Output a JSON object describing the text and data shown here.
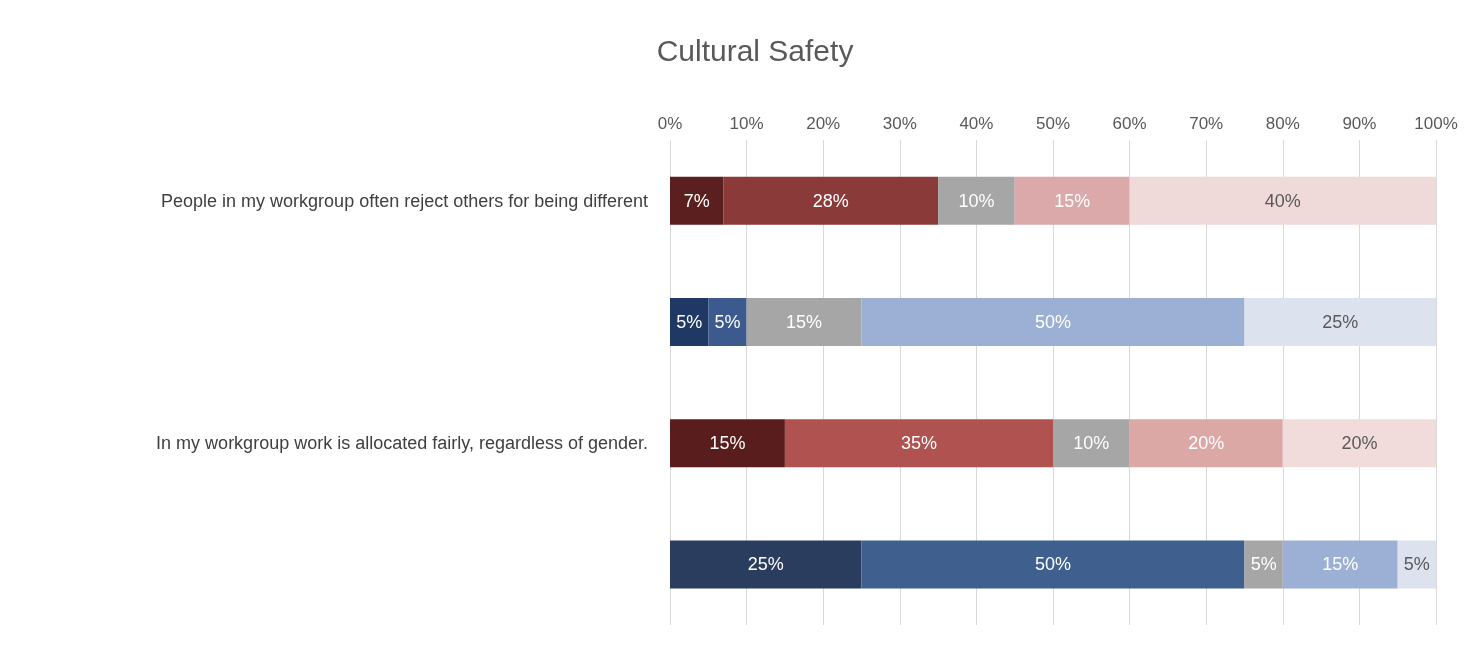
{
  "chart_data": {
    "type": "bar",
    "title": "Cultural Safety",
    "orientation": "horizontal",
    "stacked": true,
    "grid": "x",
    "categories": [
      "People in my workgroup often reject others for being different",
      null,
      "In my workgroup work is allocated fairly, regardless of gender.",
      null
    ],
    "xlim": [
      0,
      100
    ],
    "xticks": [
      {
        "value": 0,
        "label": "0%"
      },
      {
        "value": 10,
        "label": "10%"
      },
      {
        "value": 20,
        "label": "20%"
      },
      {
        "value": 30,
        "label": "30%"
      },
      {
        "value": 40,
        "label": "40%"
      },
      {
        "value": 50,
        "label": "50%"
      },
      {
        "value": 60,
        "label": "60%"
      },
      {
        "value": 70,
        "label": "70%"
      },
      {
        "value": 80,
        "label": "80%"
      },
      {
        "value": 90,
        "label": "90%"
      },
      {
        "value": 100,
        "label": "100%"
      }
    ],
    "series": [
      {
        "values": [
          7,
          5,
          15,
          25
        ],
        "colors": [
          "#5c1f1f",
          "#1f3864",
          "#5a1d1d",
          "#2a3d5e"
        ],
        "value_labels": [
          "7%",
          "5%",
          "15%",
          "25%"
        ]
      },
      {
        "values": [
          28,
          5,
          35,
          50
        ],
        "colors": [
          "#8b3a3a",
          "#3d5a8f",
          "#b0524f",
          "#3f5f8f"
        ],
        "value_labels": [
          "28%",
          "5%",
          "35%",
          "50%"
        ]
      },
      {
        "values": [
          10,
          15,
          10,
          5
        ],
        "colors": [
          "#a6a6a6",
          "#a6a6a6",
          "#a6a6a6",
          "#a6a6a6"
        ],
        "value_labels": [
          "10%",
          "15%",
          "10%",
          "5%"
        ]
      },
      {
        "values": [
          15,
          50,
          20,
          15
        ],
        "colors": [
          "#dba9a9",
          "#9bb0d4",
          "#dca8a6",
          "#9bb0d4"
        ],
        "value_labels": [
          "15%",
          "50%",
          "20%",
          "15%"
        ]
      },
      {
        "values": [
          40,
          25,
          20,
          5
        ],
        "colors": [
          "#f0d9d9",
          "#dce3ef",
          "#f2dcdb",
          "#dce3ef"
        ],
        "value_labels": [
          "40%",
          "25%",
          "20%",
          "5%"
        ]
      }
    ]
  }
}
